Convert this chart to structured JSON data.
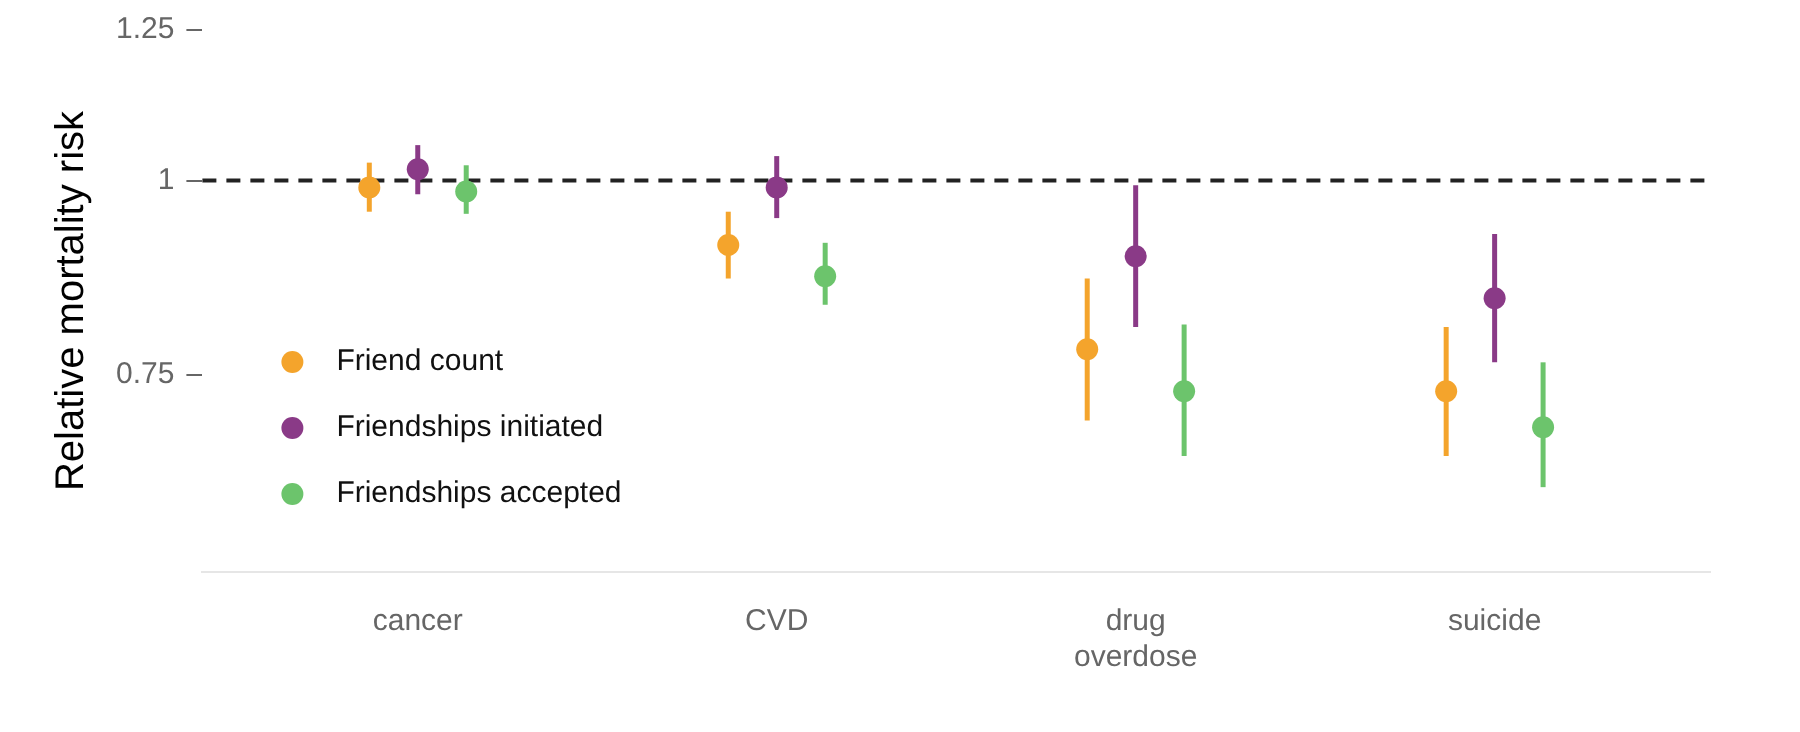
{
  "chart_data": {
    "type": "scatter",
    "ylabel": "Relative mortality risk",
    "categories": [
      "cancer",
      "CVD",
      "drug overdose",
      "suicide"
    ],
    "series": [
      {
        "name": "Friend count",
        "color": "#f4a42c",
        "values": [
          0.99,
          0.909,
          0.779,
          0.732
        ],
        "errors": [
          [
            0.955,
            1.027
          ],
          [
            0.865,
            0.955
          ],
          [
            0.701,
            0.865
          ],
          [
            0.665,
            0.805
          ]
        ]
      },
      {
        "name": "Friendships initiated",
        "color": "#8a3a87",
        "values": [
          1.017,
          0.99,
          0.894,
          0.84
        ],
        "errors": [
          [
            0.98,
            1.054
          ],
          [
            0.946,
            1.037
          ],
          [
            0.805,
            0.993
          ],
          [
            0.764,
            0.924
          ]
        ]
      },
      {
        "name": "Friendships accepted",
        "color": "#6cc46c",
        "values": [
          0.984,
          0.868,
          0.732,
          0.694
        ],
        "errors": [
          [
            0.952,
            1.023
          ],
          [
            0.832,
            0.912
          ],
          [
            0.665,
            0.808
          ],
          [
            0.635,
            0.764
          ]
        ]
      }
    ],
    "log": "y",
    "ylim": [
      0.56,
      1.25
    ],
    "yticks": [
      0.75,
      1,
      1.25
    ],
    "grid": false,
    "legend": "bottom left",
    "marker": "circle",
    "ref_lines": [
      {
        "axis": "y",
        "value": 1,
        "color": "#222222",
        "line_style": "dashed"
      }
    ]
  }
}
